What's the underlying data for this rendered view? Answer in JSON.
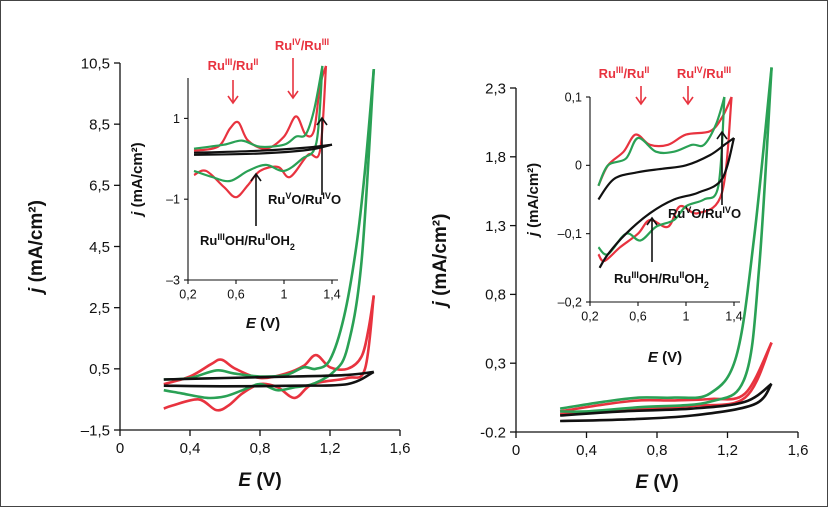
{
  "chart_data": [
    {
      "type": "line",
      "panel": "left-main",
      "xlabel": "E (V)",
      "ylabel": "j (mA/cm²)",
      "xlim": [
        0,
        1.6
      ],
      "ylim": [
        -1.5,
        10.5
      ],
      "x_ticks": [
        "0",
        "0,4",
        "0,8",
        "1,2",
        "1,6"
      ],
      "y_ticks": [
        "–1,5",
        "0,5",
        "2,5",
        "4,5",
        "6,5",
        "8,5",
        "10,5"
      ],
      "series": [
        {
          "color": "#e8333f",
          "anodic": [
            [
              0.25,
              0.0
            ],
            [
              0.4,
              0.25
            ],
            [
              0.52,
              0.65
            ],
            [
              0.58,
              0.8
            ],
            [
              0.66,
              0.5
            ],
            [
              0.8,
              0.2
            ],
            [
              0.95,
              0.35
            ],
            [
              1.05,
              0.6
            ],
            [
              1.12,
              0.95
            ],
            [
              1.2,
              0.55
            ],
            [
              1.3,
              0.5
            ],
            [
              1.38,
              0.9
            ],
            [
              1.42,
              1.8
            ],
            [
              1.45,
              2.9
            ]
          ],
          "cathodic": [
            [
              1.45,
              2.9
            ],
            [
              1.4,
              0.5
            ],
            [
              1.3,
              0.2
            ],
            [
              1.1,
              0.0
            ],
            [
              1.0,
              -0.45
            ],
            [
              0.9,
              -0.1
            ],
            [
              0.8,
              0.0
            ],
            [
              0.7,
              -0.3
            ],
            [
              0.62,
              -0.7
            ],
            [
              0.55,
              -0.85
            ],
            [
              0.45,
              -0.5
            ],
            [
              0.3,
              -0.7
            ],
            [
              0.25,
              -0.8
            ]
          ]
        },
        {
          "color": "#2aa155",
          "anodic": [
            [
              0.25,
              0.15
            ],
            [
              0.4,
              0.2
            ],
            [
              0.55,
              0.45
            ],
            [
              0.65,
              0.35
            ],
            [
              0.8,
              0.25
            ],
            [
              0.95,
              0.3
            ],
            [
              1.05,
              0.55
            ],
            [
              1.12,
              0.5
            ],
            [
              1.2,
              0.8
            ],
            [
              1.28,
              2.2
            ],
            [
              1.35,
              4.5
            ],
            [
              1.4,
              7.0
            ],
            [
              1.45,
              10.3
            ]
          ],
          "cathodic": [
            [
              1.45,
              10.3
            ],
            [
              1.38,
              4.0
            ],
            [
              1.3,
              1.2
            ],
            [
              1.22,
              0.4
            ],
            [
              1.1,
              0.0
            ],
            [
              1.0,
              -0.1
            ],
            [
              0.9,
              -0.2
            ],
            [
              0.8,
              0.0
            ],
            [
              0.7,
              -0.2
            ],
            [
              0.6,
              -0.4
            ],
            [
              0.5,
              -0.45
            ],
            [
              0.35,
              -0.3
            ],
            [
              0.25,
              -0.2
            ]
          ]
        },
        {
          "color": "#111111",
          "anodic": [
            [
              0.25,
              0.15
            ],
            [
              0.6,
              0.2
            ],
            [
              1.0,
              0.25
            ],
            [
              1.3,
              0.3
            ],
            [
              1.45,
              0.4
            ]
          ],
          "cathodic": [
            [
              1.45,
              0.4
            ],
            [
              1.3,
              0.0
            ],
            [
              1.0,
              -0.05
            ],
            [
              0.6,
              -0.07
            ],
            [
              0.25,
              -0.05
            ]
          ]
        }
      ]
    },
    {
      "type": "line",
      "panel": "left-inset",
      "xlabel": "E (V)",
      "ylabel": "j (mA/cm²)",
      "xlim": [
        0.2,
        1.45
      ],
      "ylim": [
        -3,
        2
      ],
      "x_ticks": [
        "0,2",
        "0,6",
        "1",
        "1,4"
      ],
      "y_ticks": [
        "–3",
        "–1",
        "1"
      ],
      "annotations": [
        {
          "base": "Ru",
          "sup1": "III",
          "mid": "/Ru",
          "sup2": "II",
          "color": "#e8333f"
        },
        {
          "base": "Ru",
          "sup1": "IV",
          "mid": "/Ru",
          "sup2": "III",
          "color": "#e8333f"
        },
        {
          "text1": "Ru",
          "sup1": "V",
          "text2": "O/Ru",
          "sup2": "IV",
          "text3": "O",
          "color": "#111111"
        },
        {
          "text1": "Ru",
          "sup1": "III",
          "text2": "OH/Ru",
          "sup2": "II",
          "text3": "OH",
          "sub": "2",
          "color": "#111111"
        }
      ]
    },
    {
      "type": "line",
      "panel": "right-main",
      "xlabel": "E (V)",
      "ylabel": "j (mA/cm²)",
      "xlim": [
        0,
        1.6
      ],
      "ylim": [
        -0.2,
        2.3
      ],
      "x_ticks": [
        "0",
        "0,4",
        "0,8",
        "1,2",
        "1,6"
      ],
      "y_ticks": [
        "-0.2",
        "0,3",
        "0,8",
        "1,3",
        "1,8",
        "2,3"
      ],
      "series": [
        {
          "color": "#e8333f",
          "anodic": [
            [
              0.25,
              -0.05
            ],
            [
              0.5,
              0.0
            ],
            [
              0.7,
              0.03
            ],
            [
              0.9,
              0.03
            ],
            [
              1.1,
              0.04
            ],
            [
              1.3,
              0.08
            ],
            [
              1.45,
              0.45
            ]
          ],
          "cathodic": [
            [
              1.45,
              0.45
            ],
            [
              1.3,
              0.05
            ],
            [
              1.0,
              -0.01
            ],
            [
              0.6,
              -0.04
            ],
            [
              0.25,
              -0.07
            ]
          ]
        },
        {
          "color": "#2aa155",
          "anodic": [
            [
              0.25,
              -0.03
            ],
            [
              0.5,
              0.02
            ],
            [
              0.7,
              0.05
            ],
            [
              0.9,
              0.05
            ],
            [
              1.1,
              0.08
            ],
            [
              1.25,
              0.35
            ],
            [
              1.35,
              1.2
            ],
            [
              1.45,
              2.45
            ]
          ],
          "cathodic": [
            [
              1.45,
              2.45
            ],
            [
              1.38,
              1.0
            ],
            [
              1.3,
              0.2
            ],
            [
              1.1,
              0.02
            ],
            [
              0.7,
              -0.02
            ],
            [
              0.4,
              -0.05
            ],
            [
              0.25,
              -0.05
            ]
          ]
        },
        {
          "color": "#111111",
          "anodic": [
            [
              0.25,
              -0.08
            ],
            [
              0.6,
              -0.05
            ],
            [
              1.0,
              -0.03
            ],
            [
              1.3,
              0.02
            ],
            [
              1.45,
              0.15
            ]
          ],
          "cathodic": [
            [
              1.45,
              0.15
            ],
            [
              1.35,
              0.0
            ],
            [
              1.0,
              -0.08
            ],
            [
              0.6,
              -0.11
            ],
            [
              0.25,
              -0.12
            ]
          ]
        }
      ]
    },
    {
      "type": "line",
      "panel": "right-inset",
      "xlabel": "E (V)",
      "ylabel": "j (mA/cm²)",
      "xlim": [
        0.2,
        1.45
      ],
      "ylim": [
        -0.2,
        0.1
      ],
      "x_ticks": [
        "0,2",
        "0,6",
        "1",
        "1,4"
      ],
      "y_ticks": [
        "–0,2",
        "–0,1",
        "0",
        "0,1"
      ],
      "annotations": [
        {
          "base": "Ru",
          "sup1": "III",
          "mid": "/Ru",
          "sup2": "II",
          "color": "#e8333f"
        },
        {
          "base": "Ru",
          "sup1": "IV",
          "mid": "/Ru",
          "sup2": "III",
          "color": "#e8333f"
        },
        {
          "text1": "Ru",
          "sup1": "V",
          "text2": "O/Ru",
          "sup2": "IV",
          "text3": "O",
          "color": "#111111"
        },
        {
          "text1": "Ru",
          "sup1": "III",
          "text2": "OH/Ru",
          "sup2": "II",
          "text3": "OH",
          "sub": "2",
          "color": "#111111"
        }
      ]
    }
  ]
}
